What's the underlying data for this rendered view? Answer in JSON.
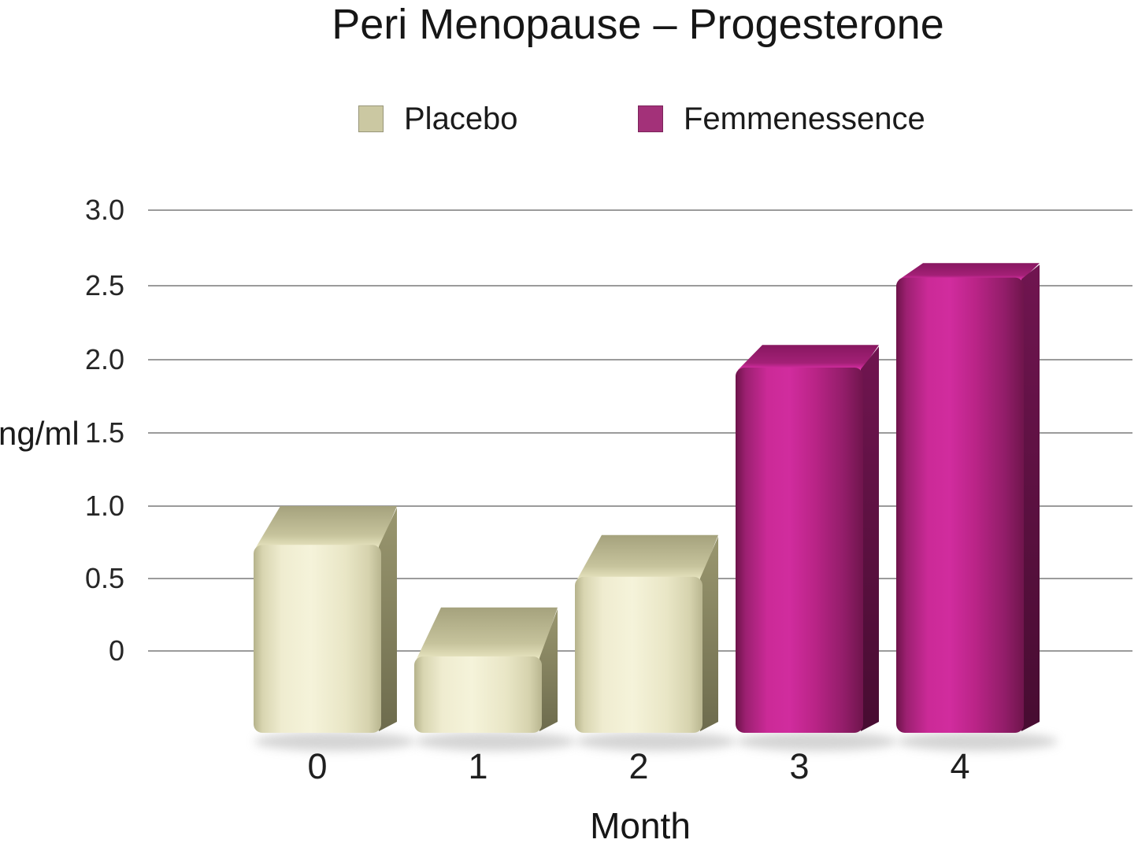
{
  "title": "Peri Menopause – Progesterone",
  "legend": [
    {
      "label": "Placebo",
      "color": "#cbc8a2"
    },
    {
      "label": "Femmenessence",
      "color": "#a33179"
    }
  ],
  "y_axis": {
    "label": "ng/ml",
    "ticks": [
      "3.0",
      "2.5",
      "2.0",
      "1.5",
      "1.0",
      "0.5",
      "0"
    ]
  },
  "x_axis": {
    "label": "Month",
    "ticks": [
      "0",
      "1",
      "2",
      "3",
      "4"
    ]
  },
  "chart_data": {
    "type": "bar",
    "style": "3d",
    "title": "Peri Menopause – Progesterone",
    "xlabel": "Month",
    "ylabel": "ng/ml",
    "categories": [
      "0",
      "1",
      "2",
      "3",
      "4"
    ],
    "series": [
      {
        "name": "Placebo",
        "color": "#d9d6b3",
        "values": [
          1.0,
          0.3,
          0.8,
          null,
          null
        ]
      },
      {
        "name": "Femmenessence",
        "color": "#b02384",
        "values": [
          null,
          null,
          null,
          2.1,
          2.65
        ]
      }
    ],
    "ylim": [
      0,
      3
    ],
    "ytick_values": [
      3.0,
      2.5,
      2.0,
      1.5,
      1.0,
      0.5,
      0
    ],
    "grid": true,
    "legend_position": "top"
  }
}
